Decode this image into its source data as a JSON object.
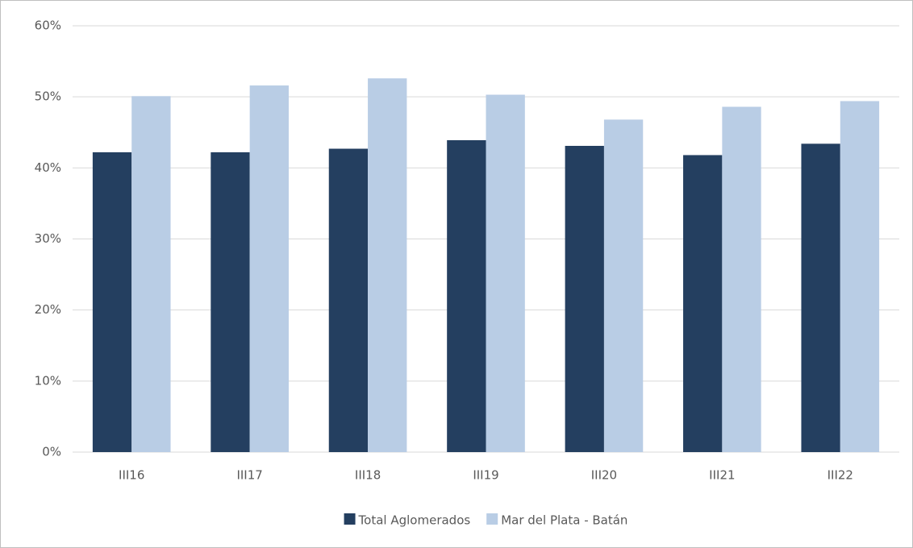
{
  "chart_data": {
    "type": "bar",
    "categories": [
      "III16",
      "III17",
      "III18",
      "III19",
      "III20",
      "III21",
      "III22"
    ],
    "series": [
      {
        "name": "Total Aglomerados",
        "color": "#243f60",
        "values": [
          42.2,
          42.2,
          42.7,
          43.9,
          43.1,
          41.8,
          43.4
        ]
      },
      {
        "name": "Mar del Plata - Batán",
        "color": "#b9cde5",
        "values": [
          50.1,
          51.6,
          52.6,
          50.3,
          46.8,
          48.6,
          49.4
        ]
      }
    ],
    "ylim": [
      0,
      60
    ],
    "yticks": [
      {
        "value": 0,
        "label": "0%"
      },
      {
        "value": 10,
        "label": "10%"
      },
      {
        "value": 20,
        "label": "20%"
      },
      {
        "value": 30,
        "label": "30%"
      },
      {
        "value": 40,
        "label": "40%"
      },
      {
        "value": 50,
        "label": "50%"
      },
      {
        "value": 60,
        "label": "60%"
      }
    ],
    "grid": true,
    "legend": "bottom"
  }
}
